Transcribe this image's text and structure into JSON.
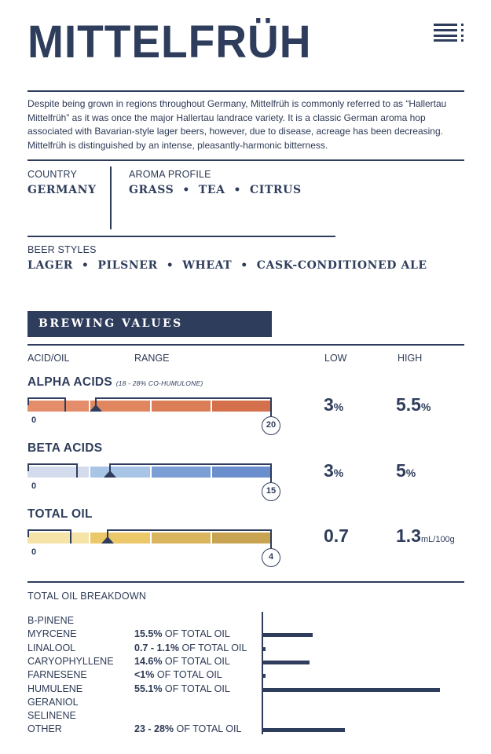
{
  "header": {
    "title": "MITTELFRÜH",
    "menu_icon": "hamburger-menu-icon"
  },
  "description": "Despite being grown in regions throughout Germany, Mittelfrüh is commonly referred to as “Hallertau Mittelfrüh” as it was once the major Hallertau landrace variety. It is a classic German aroma hop associated with Bavarian-style lager beers, however, due to disease, acreage has been decreasing. Mittelfrüh is distinguished by an intense, pleasantly-harmonic bitterness.",
  "country": {
    "label": "COUNTRY",
    "value": "GERMANY"
  },
  "aroma": {
    "label": "AROMA PROFILE",
    "value": "GRASS  •  TEA  •  CITRUS"
  },
  "beer_styles": {
    "label": "BEER STYLES",
    "value": "LAGER  •  PILSNER  •  WHEAT  •  CASK-CONDITIONED ALE"
  },
  "brewing": {
    "banner": "BREWING VALUES",
    "headers": {
      "acid": "ACID/OIL",
      "range": "RANGE",
      "low": "LOW",
      "high": "HIGH"
    },
    "rows": [
      {
        "name": "ALPHA ACIDS",
        "note": "(18 - 28% CO-HUMULONE)",
        "min": "0",
        "max": "20",
        "max_value": 20,
        "low_value": 3,
        "high_value": 5.5,
        "low": "3",
        "low_unit": "%",
        "high": "5.5",
        "high_unit": "%",
        "colors": [
          "#e38d6a",
          "#e08760",
          "#db7e57",
          "#d4704c"
        ]
      },
      {
        "name": "BETA ACIDS",
        "note": "",
        "min": "0",
        "max": "15",
        "max_value": 15,
        "low_value": 3,
        "high_value": 5,
        "low": "3",
        "low_unit": "%",
        "high": "5",
        "high_unit": "%",
        "colors": [
          "#d3dced",
          "#a9c5e6",
          "#7b9fd4",
          "#6b8fcc"
        ]
      },
      {
        "name": "TOTAL OIL",
        "note": "",
        "min": "0",
        "max": "4",
        "max_value": 4,
        "low_value": 0.7,
        "high_value": 1.3,
        "low": "0.7",
        "low_unit": "",
        "high": "1.3",
        "high_unit": "mL/100g",
        "colors": [
          "#f5e3a8",
          "#ebc96a",
          "#d9b55d",
          "#c8a452"
        ]
      }
    ]
  },
  "oil_breakdown": {
    "label": "TOTAL OIL BREAKDOWN",
    "items": [
      {
        "name": "B-PINENE",
        "value": "",
        "suffix": "",
        "pct": 0
      },
      {
        "name": "MYRCENE",
        "value": "15.5%",
        "suffix": " OF TOTAL OIL",
        "pct": 15.5
      },
      {
        "name": "LINALOOL",
        "value": "0.7 - 1.1%",
        "suffix": " OF TOTAL OIL",
        "pct": 0.9
      },
      {
        "name": "CARYOPHYLLENE",
        "value": "14.6%",
        "suffix": " OF TOTAL OIL",
        "pct": 14.6
      },
      {
        "name": "FARNESENE",
        "value": "<1%",
        "suffix": " OF TOTAL OIL",
        "pct": 1
      },
      {
        "name": "HUMULENE",
        "value": "55.1%",
        "suffix": " OF TOTAL OIL",
        "pct": 55.1
      },
      {
        "name": "GERANIOL",
        "value": "",
        "suffix": "",
        "pct": 0
      },
      {
        "name": "SELINENE",
        "value": "",
        "suffix": "",
        "pct": 0
      },
      {
        "name": "OTHER",
        "value": "23 - 28%",
        "suffix": " OF TOTAL OIL",
        "pct": 25.5
      }
    ]
  }
}
